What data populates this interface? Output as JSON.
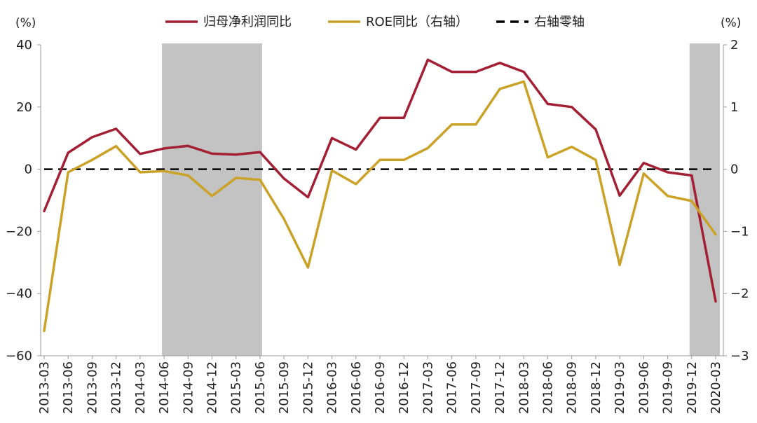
{
  "chart_data": {
    "type": "line",
    "left_unit": "(%)",
    "right_unit": "(%)",
    "categories": [
      "2013-03",
      "2013-06",
      "2013-09",
      "2013-12",
      "2014-03",
      "2014-06",
      "2014-09",
      "2014-12",
      "2015-03",
      "2015-06",
      "2015-09",
      "2015-12",
      "2016-03",
      "2016-06",
      "2016-09",
      "2016-12",
      "2017-03",
      "2017-06",
      "2017-09",
      "2017-12",
      "2018-03",
      "2018-06",
      "2018-09",
      "2018-12",
      "2019-03",
      "2019-06",
      "2019-09",
      "2019-12",
      "2020-03"
    ],
    "left_axis": {
      "range": [
        -60,
        40
      ],
      "ticks": [
        -60,
        -40,
        -20,
        0,
        20,
        40
      ]
    },
    "right_axis": {
      "range": [
        -3,
        2
      ],
      "ticks": [
        -3,
        -2,
        -1,
        0,
        1,
        2
      ]
    },
    "series": [
      {
        "name": "归母净利润同比",
        "axis": "left",
        "color": "#A31F34",
        "values": [
          -13.5,
          5.3,
          10.3,
          13.0,
          4.9,
          6.7,
          7.5,
          5.0,
          4.7,
          5.5,
          -3.0,
          -9.0,
          10.0,
          6.3,
          16.5,
          16.5,
          35.2,
          31.3,
          31.3,
          34.2,
          31.3,
          21.0,
          20.0,
          12.8,
          -8.5,
          2.0,
          -1.0,
          -2.0,
          -42.5
        ]
      },
      {
        "name": "ROE同比（右轴）",
        "axis": "right",
        "color": "#C9A227",
        "values": [
          -2.6,
          -0.05,
          0.15,
          0.37,
          -0.05,
          -0.03,
          -0.1,
          -0.43,
          -0.14,
          -0.17,
          -0.8,
          -1.58,
          -0.02,
          -0.24,
          0.15,
          0.15,
          0.34,
          0.72,
          0.72,
          1.29,
          1.41,
          0.19,
          0.36,
          0.15,
          -1.54,
          -0.07,
          -0.43,
          -0.51,
          -1.05
        ]
      }
    ],
    "zero_line": {
      "name": "右轴零轴",
      "axis": "right",
      "value": 0,
      "color": "#000000",
      "style": "dashed"
    },
    "shaded_periods": [
      {
        "from": "2014-06",
        "to": "2015-06"
      },
      {
        "from": "2019-12",
        "to": "2020-03"
      }
    ],
    "legend_position": "top",
    "grid": false
  }
}
